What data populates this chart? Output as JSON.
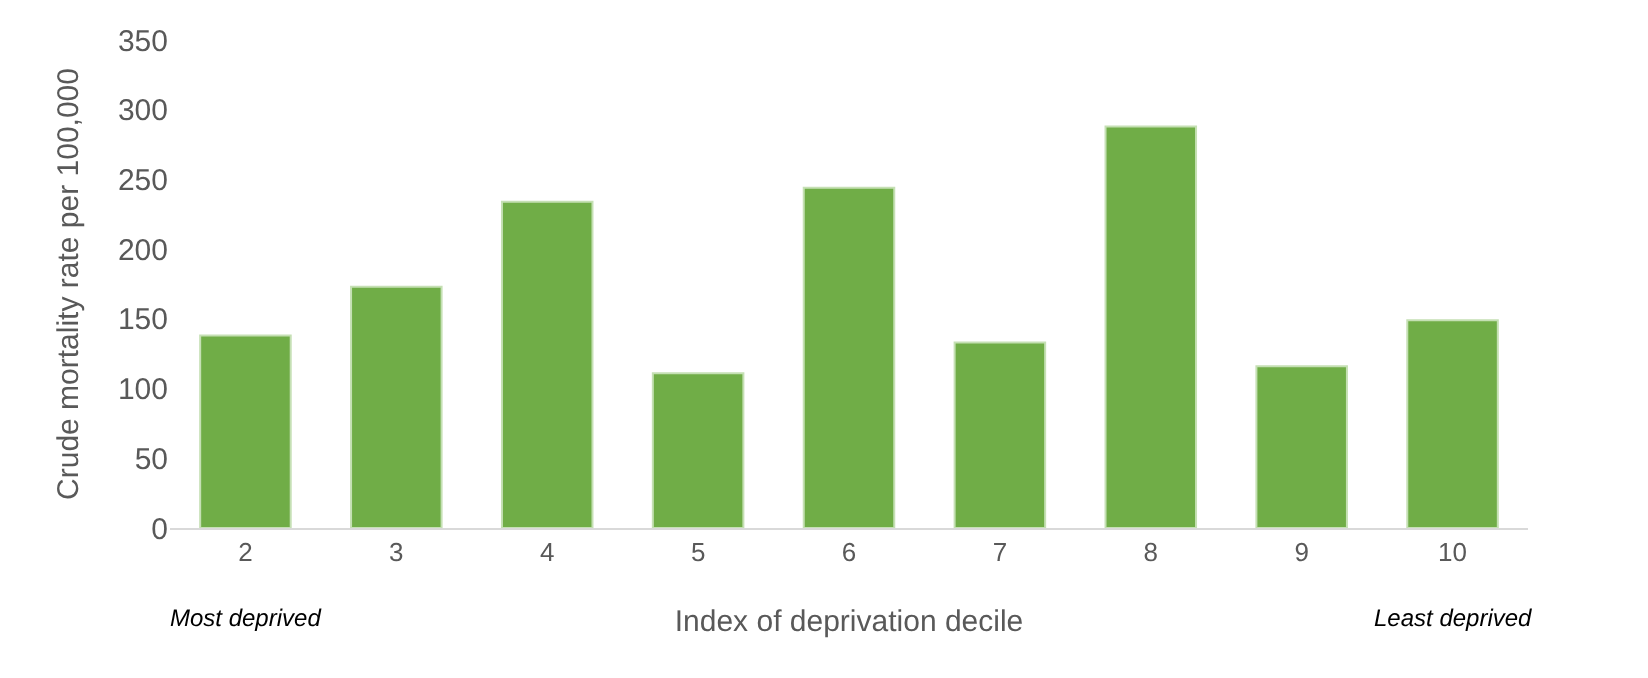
{
  "chart_data": {
    "type": "bar",
    "xlabel": "Index of deprivation decile",
    "ylabel": "Crude mortality rate per 100,000",
    "categories": [
      "2",
      "3",
      "4",
      "5",
      "6",
      "7",
      "8",
      "9",
      "10"
    ],
    "values": [
      138,
      173,
      234,
      111,
      244,
      133,
      288,
      116,
      149
    ],
    "color": "#70ad47",
    "ylim": [
      0,
      350
    ],
    "yticks": [
      0,
      50,
      100,
      150,
      200,
      250,
      300,
      350
    ],
    "annotations": [
      "Most deprived",
      "Least deprived"
    ]
  }
}
